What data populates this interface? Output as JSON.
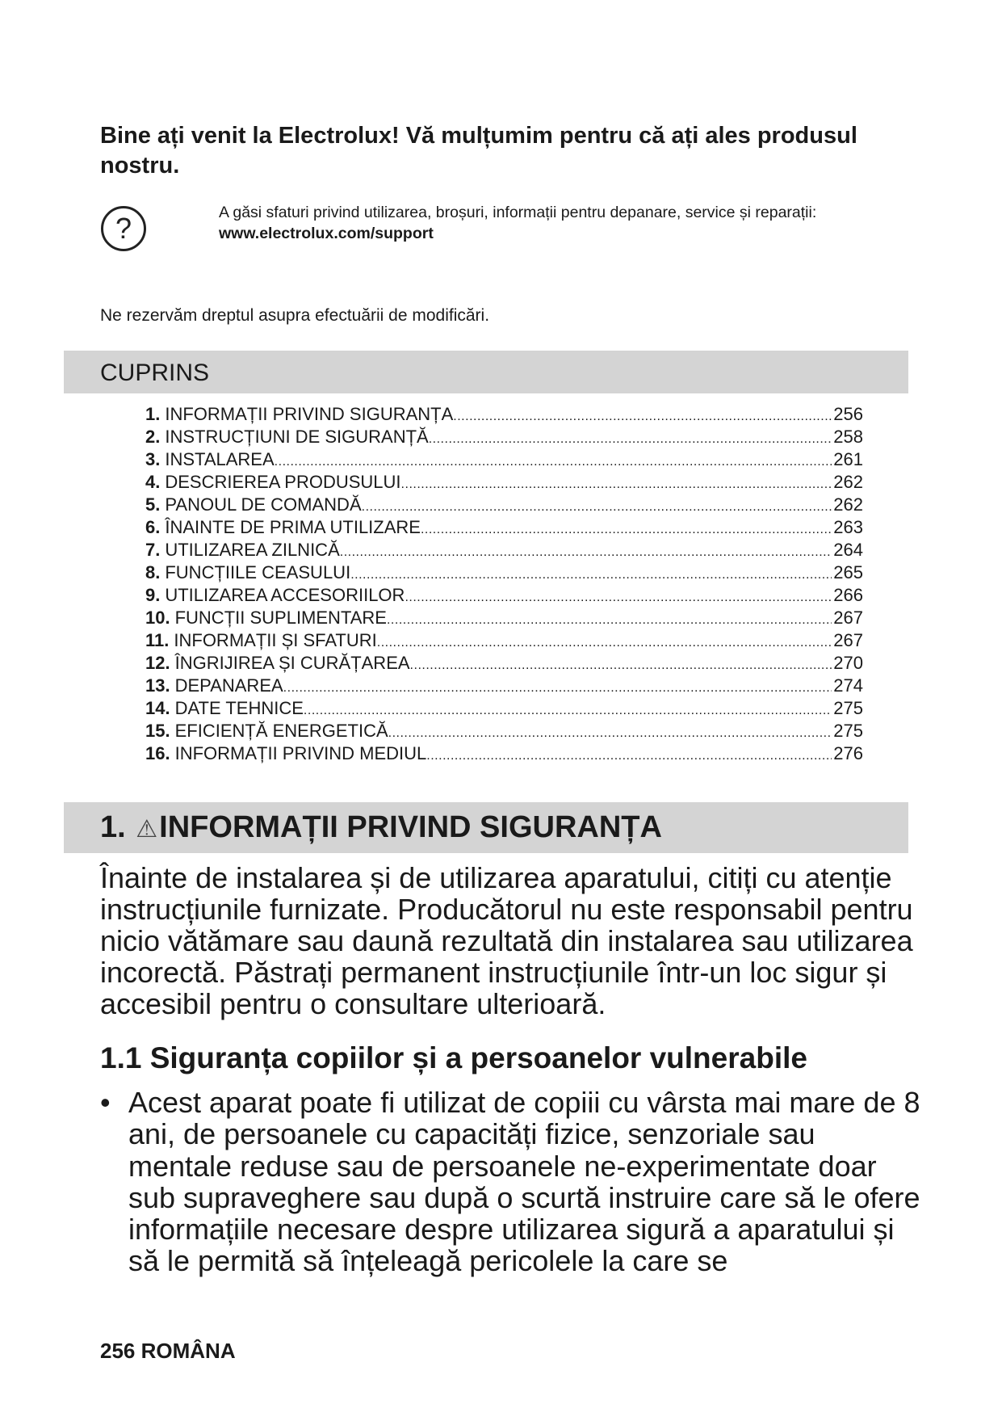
{
  "welcome": "Bine ați venit la Electrolux! Vă mulțumim pentru că ați ales produsul nostru.",
  "help": {
    "icon": "question-circle-icon",
    "text": "A găsi sfaturi privind utilizarea, broșuri, informații pentru depanare, service și reparații:",
    "url": "www.electrolux.com/support"
  },
  "rights": "Ne rezervăm dreptul asupra efectuării de modificări.",
  "toc": {
    "title": "CUPRINS",
    "items": [
      {
        "num": "1.",
        "label": "INFORMAȚII PRIVIND SIGURANȚA",
        "page": "256"
      },
      {
        "num": "2.",
        "label": "INSTRUCȚIUNI DE SIGURANȚĂ",
        "page": "258"
      },
      {
        "num": "3.",
        "label": "INSTALAREA",
        "page": "261"
      },
      {
        "num": "4.",
        "label": "DESCRIEREA PRODUSULUI",
        "page": "262"
      },
      {
        "num": "5.",
        "label": "PANOUL DE COMANDĂ",
        "page": "262"
      },
      {
        "num": "6.",
        "label": "ÎNAINTE DE PRIMA UTILIZARE",
        "page": "263"
      },
      {
        "num": "7.",
        "label": "UTILIZAREA ZILNICĂ",
        "page": "264"
      },
      {
        "num": "8.",
        "label": "FUNCȚIILE CEASULUI",
        "page": "265"
      },
      {
        "num": "9.",
        "label": "UTILIZAREA ACCESORIILOR",
        "page": "266"
      },
      {
        "num": "10.",
        "label": "FUNCȚII SUPLIMENTARE",
        "page": "267"
      },
      {
        "num": "11.",
        "label": "INFORMAȚII ȘI SFATURI",
        "page": "267"
      },
      {
        "num": "12.",
        "label": "ÎNGRIJIREA ȘI CURĂȚAREA",
        "page": "270"
      },
      {
        "num": "13.",
        "label": "DEPANAREA",
        "page": "274"
      },
      {
        "num": "14.",
        "label": "DATE TEHNICE",
        "page": "275"
      },
      {
        "num": "15.",
        "label": "EFICIENȚĂ ENERGETICĂ",
        "page": "275"
      },
      {
        "num": "16.",
        "label": "INFORMAȚII PRIVIND MEDIUL",
        "page": "276"
      }
    ]
  },
  "section1": {
    "num": "1.",
    "icon": "warning-triangle-icon",
    "title": "INFORMAȚII PRIVIND SIGURANȚA",
    "intro": "Înainte de instalarea și de utilizarea aparatului, citiți cu atenție instrucțiunile furnizate. Producătorul nu este responsabil pentru nicio vătămare sau daună rezultată din instalarea sau utilizarea incorectă. Păstrați permanent instrucțiunile într-un loc sigur și accesibil pentru o consultare ulterioară.",
    "subheading": "1.1 Siguranța copiilor și a persoanelor vulnerabile",
    "bullet": "Acest aparat poate fi utilizat de copiii cu vârsta mai mare de 8 ani, de persoanele cu capacități fizice, senzoriale sau mentale reduse sau de persoanele ne-experimentate doar sub supraveghere sau după o scurtă instruire care să le ofere informațiile necesare despre utilizarea sigură a aparatului și să le permită să înțeleagă pericolele la care se"
  },
  "footer": "256 ROMÂNA"
}
